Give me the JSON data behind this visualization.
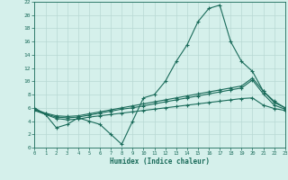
{
  "xlabel": "Humidex (Indice chaleur)",
  "bg_color": "#d5f0eb",
  "grid_color": "#b8d8d4",
  "line_color": "#1a6b5a",
  "xlim": [
    0,
    23
  ],
  "ylim": [
    0,
    22
  ],
  "xticks": [
    0,
    1,
    2,
    3,
    4,
    5,
    6,
    7,
    8,
    9,
    10,
    11,
    12,
    13,
    14,
    15,
    16,
    17,
    18,
    19,
    20,
    21,
    22,
    23
  ],
  "yticks": [
    0,
    2,
    4,
    6,
    8,
    10,
    12,
    14,
    16,
    18,
    20,
    22
  ],
  "x": [
    0,
    1,
    2,
    3,
    4,
    5,
    6,
    7,
    8,
    9,
    10,
    11,
    12,
    13,
    14,
    15,
    16,
    17,
    18,
    19,
    20,
    21,
    22,
    23
  ],
  "line1": [
    6.0,
    5.0,
    3.0,
    3.5,
    4.5,
    4.0,
    3.5,
    2.0,
    0.5,
    4.0,
    7.5,
    8.0,
    10.0,
    13.0,
    15.5,
    19.0,
    21.0,
    21.5,
    16.0,
    13.0,
    11.5,
    8.5,
    7.0,
    6.0
  ],
  "line2": [
    5.8,
    5.2,
    4.8,
    4.7,
    4.8,
    5.1,
    5.4,
    5.7,
    6.0,
    6.3,
    6.6,
    6.9,
    7.2,
    7.5,
    7.8,
    8.1,
    8.4,
    8.7,
    9.0,
    9.3,
    10.5,
    8.5,
    6.8,
    6.0
  ],
  "line3": [
    5.7,
    5.1,
    4.6,
    4.5,
    4.6,
    4.9,
    5.2,
    5.5,
    5.8,
    6.0,
    6.3,
    6.6,
    6.9,
    7.2,
    7.5,
    7.8,
    8.1,
    8.4,
    8.7,
    9.0,
    10.2,
    8.1,
    6.4,
    5.8
  ],
  "line4": [
    5.6,
    5.0,
    4.4,
    4.2,
    4.3,
    4.6,
    4.8,
    5.0,
    5.2,
    5.4,
    5.6,
    5.8,
    6.0,
    6.2,
    6.4,
    6.6,
    6.8,
    7.0,
    7.2,
    7.4,
    7.5,
    6.4,
    5.9,
    5.6
  ]
}
